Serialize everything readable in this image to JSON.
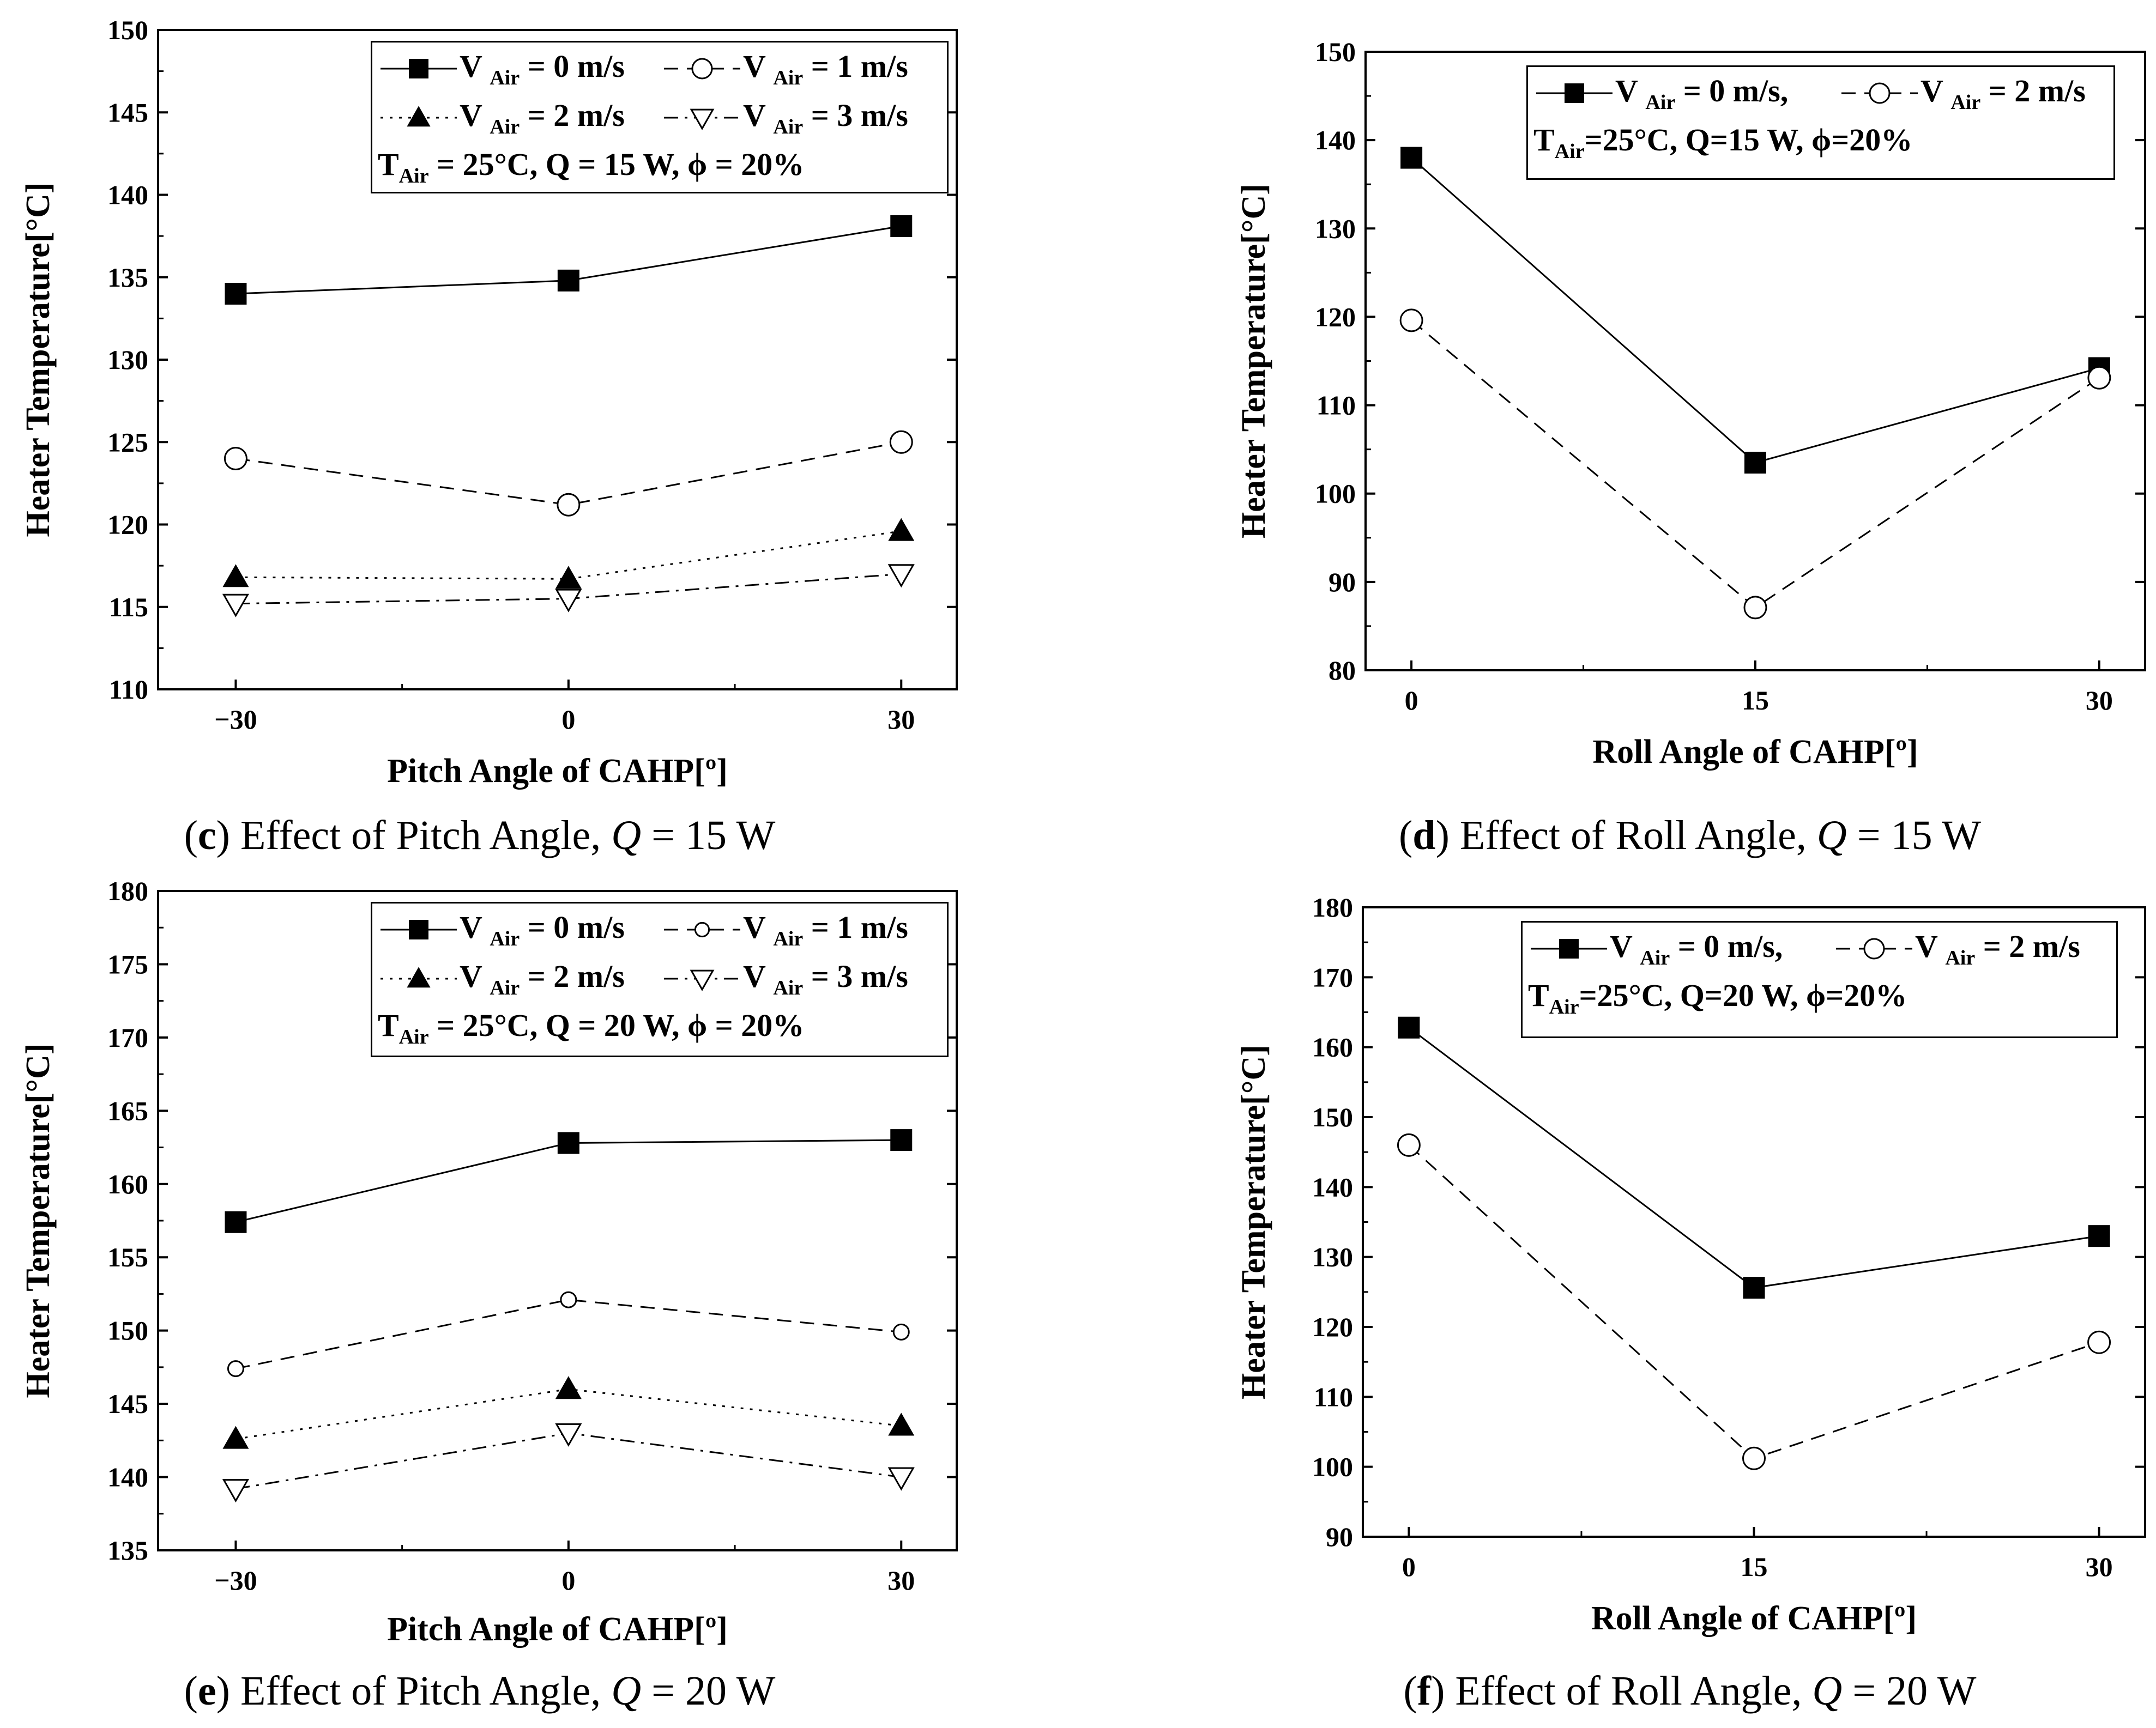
{
  "panels": [
    {
      "id": "c",
      "caption": {
        "letter": "c",
        "text_before": "Effect of Pitch Angle, ",
        "q": "Q",
        "text_after": " = 15 W"
      },
      "legend": {
        "rows": [
          [
            {
              "series": 0,
              "label": "V",
              "sub": "Air",
              "rest": " = 0 m/s"
            },
            {
              "series": 1,
              "label": "V",
              "sub": "Air",
              "rest": " = 1 m/s"
            }
          ],
          [
            {
              "series": 2,
              "label": "V",
              "sub": "Air",
              "rest": " = 2 m/s"
            },
            {
              "series": 3,
              "label": "V",
              "sub": "Air",
              "rest": " = 3 m/s"
            }
          ]
        ],
        "condition": {
          "t": "T",
          "sub": "Air",
          "rest": " = 25°C, Q = 15 W, ϕ = 20%"
        }
      }
    },
    {
      "id": "d",
      "caption": {
        "letter": "d",
        "text_before": "Effect of Roll Angle, ",
        "q": "Q",
        "text_after": " = 15 W"
      },
      "legend": {
        "rows": [
          [
            {
              "series": 0,
              "label": "V",
              "sub": "Air",
              "rest": " = 0 m/s,"
            },
            {
              "series": 1,
              "label": "V",
              "sub": "Air",
              "rest": " = 2 m/s"
            }
          ]
        ],
        "condition": {
          "t": "T",
          "sub": "Air",
          "rest": "=25°C, Q=15 W, ϕ=20%"
        }
      }
    },
    {
      "id": "e",
      "caption": {
        "letter": "e",
        "text_before": "Effect of Pitch Angle, ",
        "q": "Q",
        "text_after": " = 20 W"
      },
      "legend": {
        "rows": [
          [
            {
              "series": 0,
              "label": "V",
              "sub": "Air",
              "rest": " = 0 m/s"
            },
            {
              "series": 1,
              "label": "V",
              "sub": "Air",
              "rest": " = 1 m/s"
            }
          ],
          [
            {
              "series": 2,
              "label": "V",
              "sub": "Air",
              "rest": " = 2 m/s"
            },
            {
              "series": 3,
              "label": "V",
              "sub": "Air",
              "rest": " = 3 m/s"
            }
          ]
        ],
        "condition": {
          "t": "T",
          "sub": "Air",
          "rest": " = 25°C, Q = 20 W, ϕ = 20%"
        }
      }
    },
    {
      "id": "f",
      "caption": {
        "letter": "f",
        "text_before": "Effect of Roll Angle, ",
        "q": "Q",
        "text_after": " = 20 W"
      },
      "legend": {
        "rows": [
          [
            {
              "series": 0,
              "label": "V",
              "sub": "Air",
              "rest": " = 0 m/s,"
            },
            {
              "series": 1,
              "label": "V",
              "sub": "Air",
              "rest": " = 2 m/s"
            }
          ]
        ],
        "condition": {
          "t": "T",
          "sub": "Air",
          "rest": "=25°C, Q=20 W, ϕ=20%"
        }
      }
    }
  ],
  "chart_data": [
    {
      "type": "line",
      "xlabel": "Pitch Angle of CAHP[º]",
      "ylabel": "Heater Temperature[°C]",
      "x": [
        -30,
        0,
        30
      ],
      "x_tick_labels": [
        "−30",
        "0",
        "30"
      ],
      "xlim": [
        -37,
        35
      ],
      "ylim": [
        110,
        150
      ],
      "y_ticks": [
        110,
        115,
        120,
        125,
        130,
        135,
        140,
        145,
        150
      ],
      "series": [
        {
          "values": [
            134.0,
            134.8,
            138.1
          ],
          "marker": "filled-square",
          "line": "solid"
        },
        {
          "values": [
            124.0,
            121.2,
            125.0
          ],
          "marker": "open-circle",
          "line": "dashed"
        },
        {
          "values": [
            116.8,
            116.7,
            119.6
          ],
          "marker": "filled-triangle-up",
          "line": "dotted"
        },
        {
          "values": [
            115.2,
            115.5,
            117.0
          ],
          "marker": "open-triangle-down",
          "line": "dash-dot"
        }
      ]
    },
    {
      "type": "line",
      "xlabel": "Roll Angle of CAHP[º]",
      "ylabel": "Heater Temperature[°C]",
      "x": [
        0,
        15,
        30
      ],
      "x_tick_labels": [
        "0",
        "15",
        "30"
      ],
      "xlim": [
        -2,
        32
      ],
      "ylim": [
        80,
        150
      ],
      "y_ticks": [
        80,
        90,
        100,
        110,
        120,
        130,
        140,
        150
      ],
      "series": [
        {
          "values": [
            138.0,
            103.5,
            114.2
          ],
          "marker": "filled-square",
          "line": "solid"
        },
        {
          "values": [
            119.6,
            87.1,
            113.1
          ],
          "marker": "open-circle",
          "line": "dashed"
        }
      ]
    },
    {
      "type": "line",
      "xlabel": "Pitch Angle of CAHP[º]",
      "ylabel": "Heater Temperature[°C]",
      "x": [
        -30,
        0,
        30
      ],
      "x_tick_labels": [
        "−30",
        "0",
        "30"
      ],
      "xlim": [
        -37,
        35
      ],
      "ylim": [
        135,
        180
      ],
      "y_ticks": [
        135,
        140,
        145,
        150,
        155,
        160,
        165,
        170,
        175,
        180
      ],
      "series": [
        {
          "values": [
            157.4,
            162.8,
            163.0
          ],
          "marker": "filled-square",
          "line": "solid"
        },
        {
          "values": [
            147.4,
            152.1,
            149.9
          ],
          "marker": "small-open-circle",
          "line": "dashed"
        },
        {
          "values": [
            142.6,
            146.0,
            143.5
          ],
          "marker": "filled-triangle-up",
          "line": "dotted"
        },
        {
          "values": [
            139.2,
            143.0,
            140.0
          ],
          "marker": "open-triangle-down",
          "line": "dash-dot"
        }
      ]
    },
    {
      "type": "line",
      "xlabel": "Roll Angle of CAHP[º]",
      "ylabel": "Heater Temperature[°C]",
      "x": [
        0,
        15,
        30
      ],
      "x_tick_labels": [
        "0",
        "15",
        "30"
      ],
      "xlim": [
        -2,
        32
      ],
      "ylim": [
        90,
        180
      ],
      "y_ticks": [
        90,
        100,
        110,
        120,
        130,
        140,
        150,
        160,
        170,
        180
      ],
      "series": [
        {
          "values": [
            162.8,
            125.6,
            133.0
          ],
          "marker": "filled-square",
          "line": "solid"
        },
        {
          "values": [
            146.0,
            101.2,
            117.8
          ],
          "marker": "open-circle",
          "line": "dashed"
        }
      ]
    }
  ]
}
